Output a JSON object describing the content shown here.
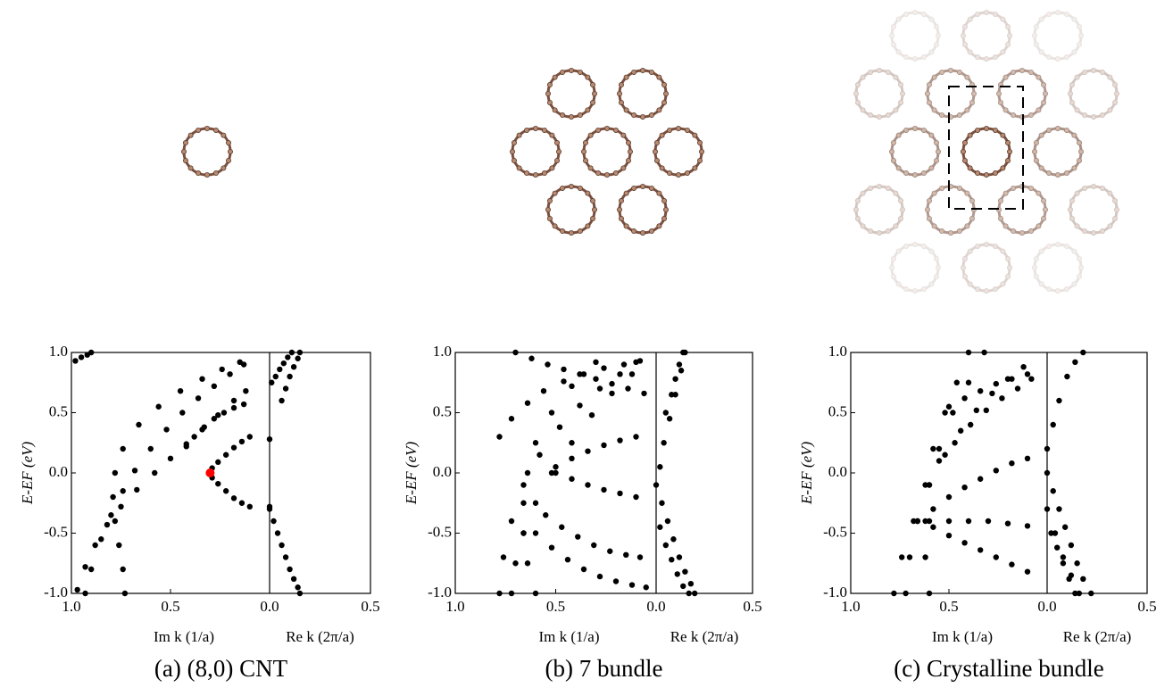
{
  "chart_data": [
    {
      "type": "scatter",
      "caption": "(a) (8,0) CNT",
      "ylabel": "E-EF (eV)",
      "ylim": [
        -1,
        1
      ],
      "yticks": [
        {
          "value": 1,
          "label": "1.0"
        },
        0.5,
        {
          "value": 0,
          "label": "0.0"
        },
        -0.5,
        {
          "value": -1,
          "label": "-1.0"
        }
      ],
      "panels": [
        {
          "xlabel": "Im k (1/a)",
          "xlim": [
            1,
            0
          ],
          "xticks": [
            {
              "value": 1,
              "label": "1.0"
            },
            0.5
          ],
          "series": [
            {
              "color": "#000000",
              "x": [
                0.98,
                0.95,
                0.92,
                0.9
              ],
              "y": [
                0.93,
                0.96,
                0.98,
                1.0
              ]
            },
            {
              "color": "#000000",
              "x": [
                0.93,
                0.9,
                0.85,
                0.8,
                0.74,
                0.68,
                0.6,
                0.52,
                0.44,
                0.36,
                0.28,
                0.2,
                0.13
              ],
              "y": [
                -1,
                -0.8,
                -0.55,
                -0.35,
                -0.15,
                0.02,
                0.2,
                0.36,
                0.5,
                0.62,
                0.72,
                0.82,
                0.9
              ]
            },
            {
              "color": "#000000",
              "x": [
                0.97,
                0.93,
                0.88,
                0.82,
                0.75,
                0.67,
                0.58,
                0.5,
                0.42,
                0.34,
                0.26,
                0.18,
                0.12
              ],
              "y": [
                -0.97,
                -0.78,
                -0.6,
                -0.43,
                -0.28,
                -0.14,
                0.0,
                0.12,
                0.24,
                0.36,
                0.48,
                0.6,
                0.68
              ]
            },
            {
              "color": "#000000",
              "x": [
                0.73,
                0.74,
                0.76,
                0.78,
                0.79,
                0.78,
                0.74,
                0.66,
                0.56,
                0.45,
                0.34,
                0.24,
                0.15
              ],
              "y": [
                -1,
                -0.8,
                -0.6,
                -0.4,
                -0.2,
                0,
                0.2,
                0.4,
                0.55,
                0.68,
                0.78,
                0.86,
                0.92
              ]
            },
            {
              "color": "#000000",
              "x": [
                0.42,
                0.38,
                0.33,
                0.28,
                0.23,
                0.18,
                0.13
              ],
              "y": [
                0.22,
                0.3,
                0.38,
                0.45,
                0.5,
                0.54,
                0.57
              ]
            },
            {
              "color": "#000000",
              "x": [
                0.1,
                0.14,
                0.18,
                0.22,
                0.26,
                0.29,
                0.29,
                0.26,
                0.22,
                0.18,
                0.14,
                0.1
              ],
              "y": [
                0.3,
                0.26,
                0.21,
                0.15,
                0.09,
                0.04,
                -0.04,
                -0.09,
                -0.15,
                -0.21,
                -0.25,
                -0.28
              ]
            },
            {
              "color": "#ff0000",
              "x": [
                0.3
              ],
              "y": [
                0
              ]
            }
          ]
        },
        {
          "xlabel": "Re k (2π/a)",
          "xlim": [
            0,
            0.5
          ],
          "xticks": [
            {
              "value": 0,
              "label": "0.0"
            },
            0.5
          ],
          "series": [
            {
              "color": "#000000",
              "x": [
                0.0,
                0.02,
                0.04,
                0.06,
                0.08,
                0.1,
                0.12,
                0.14,
                0.15
              ],
              "y": [
                -0.3,
                -0.4,
                -0.5,
                -0.6,
                -0.7,
                -0.8,
                -0.88,
                -0.95,
                -1
              ]
            },
            {
              "color": "#000000",
              "x": [
                0.01,
                0.03,
                0.05,
                0.07,
                0.09,
                0.11
              ],
              "y": [
                0.75,
                0.8,
                0.86,
                0.91,
                0.96,
                1
              ]
            },
            {
              "color": "#000000",
              "x": [
                0.06,
                0.08,
                0.1,
                0.12,
                0.14,
                0.15
              ],
              "y": [
                0.6,
                0.7,
                0.8,
                0.88,
                0.95,
                1
              ]
            },
            {
              "color": "#000000",
              "x": [
                0.0,
                0.0
              ],
              "y": [
                0.28,
                -0.28
              ]
            }
          ]
        }
      ]
    },
    {
      "type": "scatter",
      "caption": "(b) 7 bundle",
      "ylabel": "E-EF (eV)",
      "ylim": [
        -1,
        1
      ],
      "yticks": [
        {
          "value": 1,
          "label": "1.0"
        },
        0.5,
        {
          "value": 0,
          "label": "0.0"
        },
        -0.5,
        {
          "value": -1,
          "label": "-1.0"
        }
      ],
      "panels": [
        {
          "xlabel": "Im k (1/a)",
          "xlim": [
            1,
            0
          ],
          "xticks": [
            {
              "value": 1,
              "label": "1.0"
            },
            0.5
          ],
          "series": [
            {
              "color": "#000000",
              "x": [
                0.78,
                0.76,
                0.72,
                0.66,
                0.58,
                0.48,
                0.38,
                0.28,
                0.18,
                0.1
              ],
              "y": [
                -1,
                -0.7,
                -0.4,
                -0.1,
                0.15,
                0.38,
                0.56,
                0.7,
                0.82,
                0.92
              ]
            },
            {
              "color": "#000000",
              "x": [
                0.72,
                0.7,
                0.66,
                0.6,
                0.52,
                0.42,
                0.32,
                0.22,
                0.12
              ],
              "y": [
                -1,
                -0.75,
                -0.5,
                -0.25,
                0,
                0.25,
                0.48,
                0.66,
                0.82
              ]
            },
            {
              "color": "#000000",
              "x": [
                0.6,
                0.64,
                0.66,
                0.66,
                0.64,
                0.6,
                0.52,
                0.42,
                0.3
              ],
              "y": [
                -1,
                -0.75,
                -0.5,
                -0.25,
                0,
                0.25,
                0.5,
                0.72,
                0.92
              ]
            },
            {
              "color": "#000000",
              "x": [
                0.78,
                0.72,
                0.64,
                0.56,
                0.46,
                0.36,
                0.26,
                0.16,
                0.08
              ],
              "y": [
                0.3,
                0.45,
                0.58,
                0.68,
                0.76,
                0.82,
                0.87,
                0.9,
                0.93
              ]
            },
            {
              "color": "#000000",
              "x": [
                0.7,
                0.62,
                0.54,
                0.46,
                0.38,
                0.3,
                0.22,
                0.14,
                0.06
              ],
              "y": [
                1,
                0.95,
                0.9,
                0.86,
                0.82,
                0.78,
                0.74,
                0.7,
                0.66
              ]
            },
            {
              "color": "#000000",
              "x": [
                0.6,
                0.52,
                0.44,
                0.36,
                0.28,
                0.2,
                0.12,
                0.05
              ],
              "y": [
                -0.5,
                -0.62,
                -0.72,
                -0.8,
                -0.86,
                -0.9,
                -0.93,
                -0.95
              ]
            },
            {
              "color": "#000000",
              "x": [
                0.55,
                0.47,
                0.39,
                0.31,
                0.23,
                0.15,
                0.08
              ],
              "y": [
                -0.35,
                -0.45,
                -0.53,
                -0.6,
                -0.65,
                -0.68,
                -0.7
              ]
            },
            {
              "color": "#000000",
              "x": [
                0.5,
                0.42,
                0.34,
                0.26,
                0.18,
                0.1
              ],
              "y": [
                0.0,
                -0.05,
                -0.1,
                -0.14,
                -0.17,
                -0.2
              ]
            },
            {
              "color": "#000000",
              "x": [
                0.5,
                0.42,
                0.34,
                0.26,
                0.18,
                0.1
              ],
              "y": [
                0.05,
                0.12,
                0.18,
                0.23,
                0.27,
                0.3
              ]
            }
          ]
        },
        {
          "xlabel": "Re k (2π/a)",
          "xlim": [
            0,
            0.5
          ],
          "xticks": [
            {
              "value": 0,
              "label": "0.0"
            },
            0.5
          ],
          "series": [
            {
              "color": "#000000",
              "x": [
                0.0,
                0.03,
                0.06,
                0.09,
                0.12,
                0.15,
                0.18,
                0.2
              ],
              "y": [
                -0.1,
                -0.25,
                -0.4,
                -0.55,
                -0.7,
                -0.82,
                -0.92,
                -1
              ]
            },
            {
              "color": "#000000",
              "x": [
                0.02,
                0.05,
                0.08,
                0.11,
                0.14,
                0.17
              ],
              "y": [
                -0.45,
                -0.6,
                -0.72,
                -0.84,
                -0.94,
                -1
              ]
            },
            {
              "color": "#000000",
              "x": [
                0.02,
                0.04,
                0.07,
                0.1,
                0.13,
                0.15
              ],
              "y": [
                0.05,
                0.25,
                0.45,
                0.65,
                0.85,
                1
              ]
            },
            {
              "color": "#000000",
              "x": [
                0.05,
                0.08,
                0.1,
                0.12,
                0.14
              ],
              "y": [
                0.5,
                0.65,
                0.78,
                0.9,
                1
              ]
            }
          ]
        }
      ]
    },
    {
      "type": "scatter",
      "caption": "(c) Crystalline bundle",
      "ylabel": "E-EF (eV)",
      "ylim": [
        -1,
        1
      ],
      "yticks": [
        {
          "value": 1,
          "label": "1.0"
        },
        0.5,
        {
          "value": 0,
          "label": "0.0"
        },
        -0.5,
        {
          "value": -1,
          "label": "-1.0"
        }
      ],
      "panels": [
        {
          "xlabel": "Im k (1/a)",
          "xlim": [
            1,
            0
          ],
          "xticks": [
            {
              "value": 1,
              "label": "1.0"
            },
            0.5
          ],
          "series": [
            {
              "color": "#000000",
              "x": [
                0.78,
                0.74,
                0.68,
                0.6,
                0.52,
                0.44,
                0.36,
                0.28,
                0.2,
                0.12
              ],
              "y": [
                -1,
                -0.7,
                -0.4,
                -0.1,
                0.15,
                0.35,
                0.52,
                0.66,
                0.78,
                0.88
              ]
            },
            {
              "color": "#000000",
              "x": [
                0.72,
                0.7,
                0.66,
                0.62,
                0.58,
                0.52,
                0.46,
                0.4
              ],
              "y": [
                -1,
                -0.7,
                -0.4,
                -0.1,
                0.2,
                0.5,
                0.75,
                1
              ]
            },
            {
              "color": "#000000",
              "x": [
                0.6,
                0.62,
                0.62,
                0.6,
                0.55,
                0.48,
                0.4,
                0.32
              ],
              "y": [
                -1,
                -0.7,
                -0.4,
                -0.1,
                0.2,
                0.5,
                0.75,
                1
              ]
            },
            {
              "color": "#000000",
              "x": [
                0.66,
                0.58,
                0.5,
                0.42,
                0.34,
                0.26,
                0.18,
                0.1
              ],
              "y": [
                -0.4,
                -0.45,
                -0.52,
                -0.58,
                -0.64,
                -0.7,
                -0.76,
                -0.82
              ]
            },
            {
              "color": "#000000",
              "x": [
                0.66,
                0.58,
                0.5,
                0.42,
                0.34,
                0.26,
                0.18,
                0.1
              ],
              "y": [
                -0.4,
                -0.3,
                -0.2,
                -0.12,
                -0.05,
                0.02,
                0.08,
                0.12
              ]
            },
            {
              "color": "#000000",
              "x": [
                0.6,
                0.5,
                0.4,
                0.3,
                0.2,
                0.1
              ],
              "y": [
                -0.4,
                -0.4,
                -0.4,
                -0.4,
                -0.42,
                -0.44
              ]
            },
            {
              "color": "#000000",
              "x": [
                0.55,
                0.47,
                0.39,
                0.31,
                0.23,
                0.15,
                0.08
              ],
              "y": [
                0.1,
                0.25,
                0.4,
                0.52,
                0.62,
                0.7,
                0.78
              ]
            },
            {
              "color": "#000000",
              "x": [
                0.5,
                0.42,
                0.34,
                0.26,
                0.18,
                0.1
              ],
              "y": [
                0.55,
                0.62,
                0.68,
                0.74,
                0.78,
                0.82
              ]
            }
          ]
        },
        {
          "xlabel": "Re k (2π/a)",
          "xlim": [
            0,
            0.5
          ],
          "xticks": [
            {
              "value": 0,
              "label": "0.0"
            },
            0.5
          ],
          "series": [
            {
              "color": "#000000",
              "x": [
                0.0,
                0.03,
                0.06,
                0.09,
                0.12,
                0.15,
                0.18,
                0.22
              ],
              "y": [
                0.0,
                -0.15,
                -0.3,
                -0.45,
                -0.6,
                -0.75,
                -0.88,
                -1
              ]
            },
            {
              "color": "#000000",
              "x": [
                0.02,
                0.05,
                0.08,
                0.11,
                0.14
              ],
              "y": [
                -0.5,
                -0.62,
                -0.75,
                -0.88,
                -1
              ]
            },
            {
              "color": "#000000",
              "x": [
                0.0,
                0.03,
                0.06,
                0.1,
                0.14,
                0.18
              ],
              "y": [
                0.2,
                0.4,
                0.6,
                0.8,
                0.92,
                1
              ]
            },
            {
              "color": "#000000",
              "x": [
                0.0,
                0.04,
                0.08,
                0.12,
                0.16
              ],
              "y": [
                -0.3,
                -0.5,
                -0.7,
                -0.85,
                -1
              ]
            }
          ]
        }
      ]
    }
  ]
}
